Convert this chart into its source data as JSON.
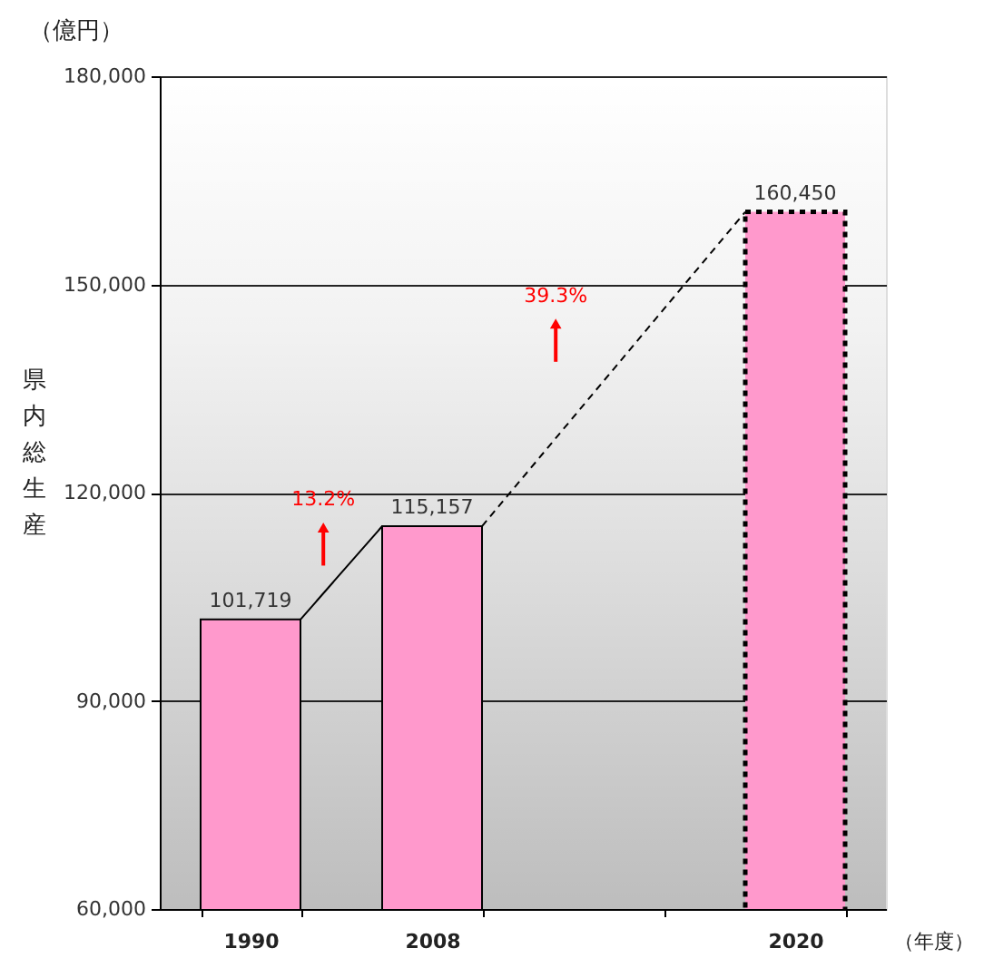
{
  "chart_data": {
    "type": "bar",
    "xlabel": "（年度）",
    "ylabel": "県内総生産",
    "categories": [
      "1990",
      "2008",
      null,
      "2020"
    ],
    "series": [
      {
        "color": "#ff99cc",
        "values": [
          101719,
          115157,
          null,
          null
        ],
        "value_labels": [
          "101,719",
          "115,157",
          null,
          null
        ]
      },
      {
        "color": "#ff99cc",
        "line_style": "dotted",
        "values": [
          null,
          null,
          null,
          160450
        ],
        "value_labels": [
          null,
          null,
          null,
          "160,450"
        ]
      }
    ],
    "ylim": [
      60000,
      180000
    ],
    "yticks": [
      {
        "value": 60000,
        "label": "60,000"
      },
      {
        "value": 90000,
        "label": "90,000"
      },
      {
        "value": 120000,
        "label": "120,000"
      },
      {
        "value": 150000,
        "label": "150,000"
      },
      {
        "value": 180000,
        "label": "180,000"
      }
    ],
    "grid": "y",
    "annotations": [
      "（億円）",
      "13.2%",
      "39.3%"
    ]
  }
}
